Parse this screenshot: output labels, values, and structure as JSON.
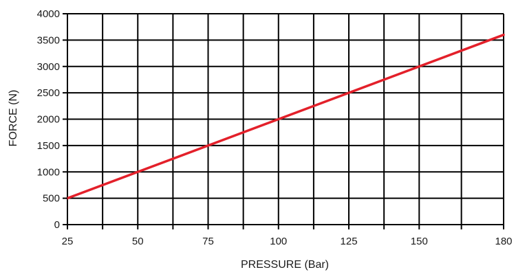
{
  "chart_data": {
    "type": "line",
    "title": "",
    "xlabel": "PRESSURE (Bar)",
    "ylabel": "FORCE (N)",
    "xlim": [
      25,
      180
    ],
    "ylim": [
      0,
      4000
    ],
    "x_tick_labels": [
      {
        "value": 25,
        "label": "25"
      },
      {
        "value": 50,
        "label": "50"
      },
      {
        "value": 75,
        "label": "75"
      },
      {
        "value": 100,
        "label": "100"
      },
      {
        "value": 125,
        "label": "125"
      },
      {
        "value": 150,
        "label": "150"
      },
      {
        "value": 180,
        "label": "180"
      }
    ],
    "x_gridlines": [
      25,
      37.5,
      50,
      62.5,
      75,
      87.5,
      100,
      112.5,
      125,
      137.5,
      150,
      165,
      180
    ],
    "y_ticks": [
      0,
      500,
      1000,
      1500,
      2000,
      2500,
      3000,
      3500,
      4000
    ],
    "y_tick_labels": [
      "0",
      "500",
      "1000",
      "1500",
      "2000",
      "2500",
      "3000",
      "3500",
      "4000"
    ],
    "grid": true,
    "series": [
      {
        "color": "#e3202a",
        "x": [
          25,
          50,
          75,
          100,
          125,
          150,
          180
        ],
        "y": [
          500,
          1000,
          1500,
          2000,
          2500,
          3000,
          3600
        ]
      }
    ]
  }
}
